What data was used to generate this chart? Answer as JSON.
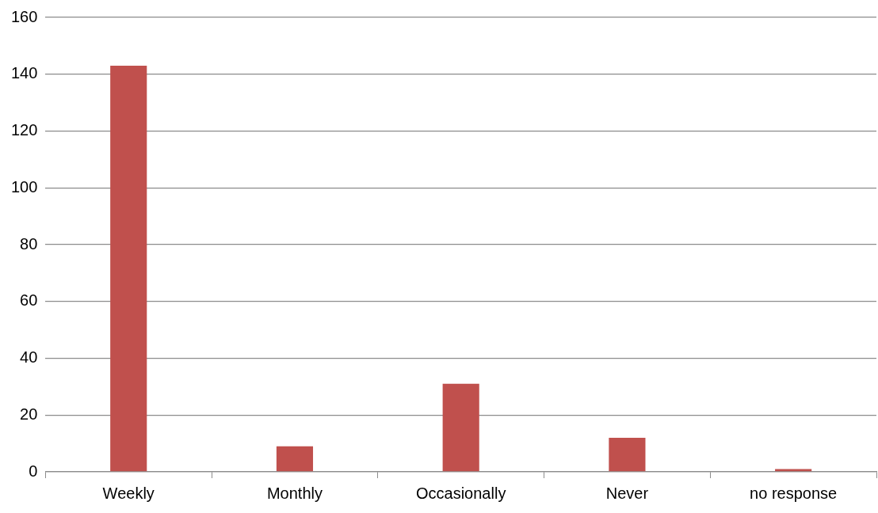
{
  "chart_data": {
    "type": "bar",
    "categories": [
      "Weekly",
      "Monthly",
      "Occasionally",
      "Never",
      "no response"
    ],
    "values": [
      143,
      9,
      31,
      12,
      1
    ],
    "color": "#c0504d",
    "ylim": [
      0,
      160
    ],
    "yticks": [
      0,
      20,
      40,
      60,
      80,
      100,
      120,
      140,
      160
    ],
    "grid": "y"
  }
}
